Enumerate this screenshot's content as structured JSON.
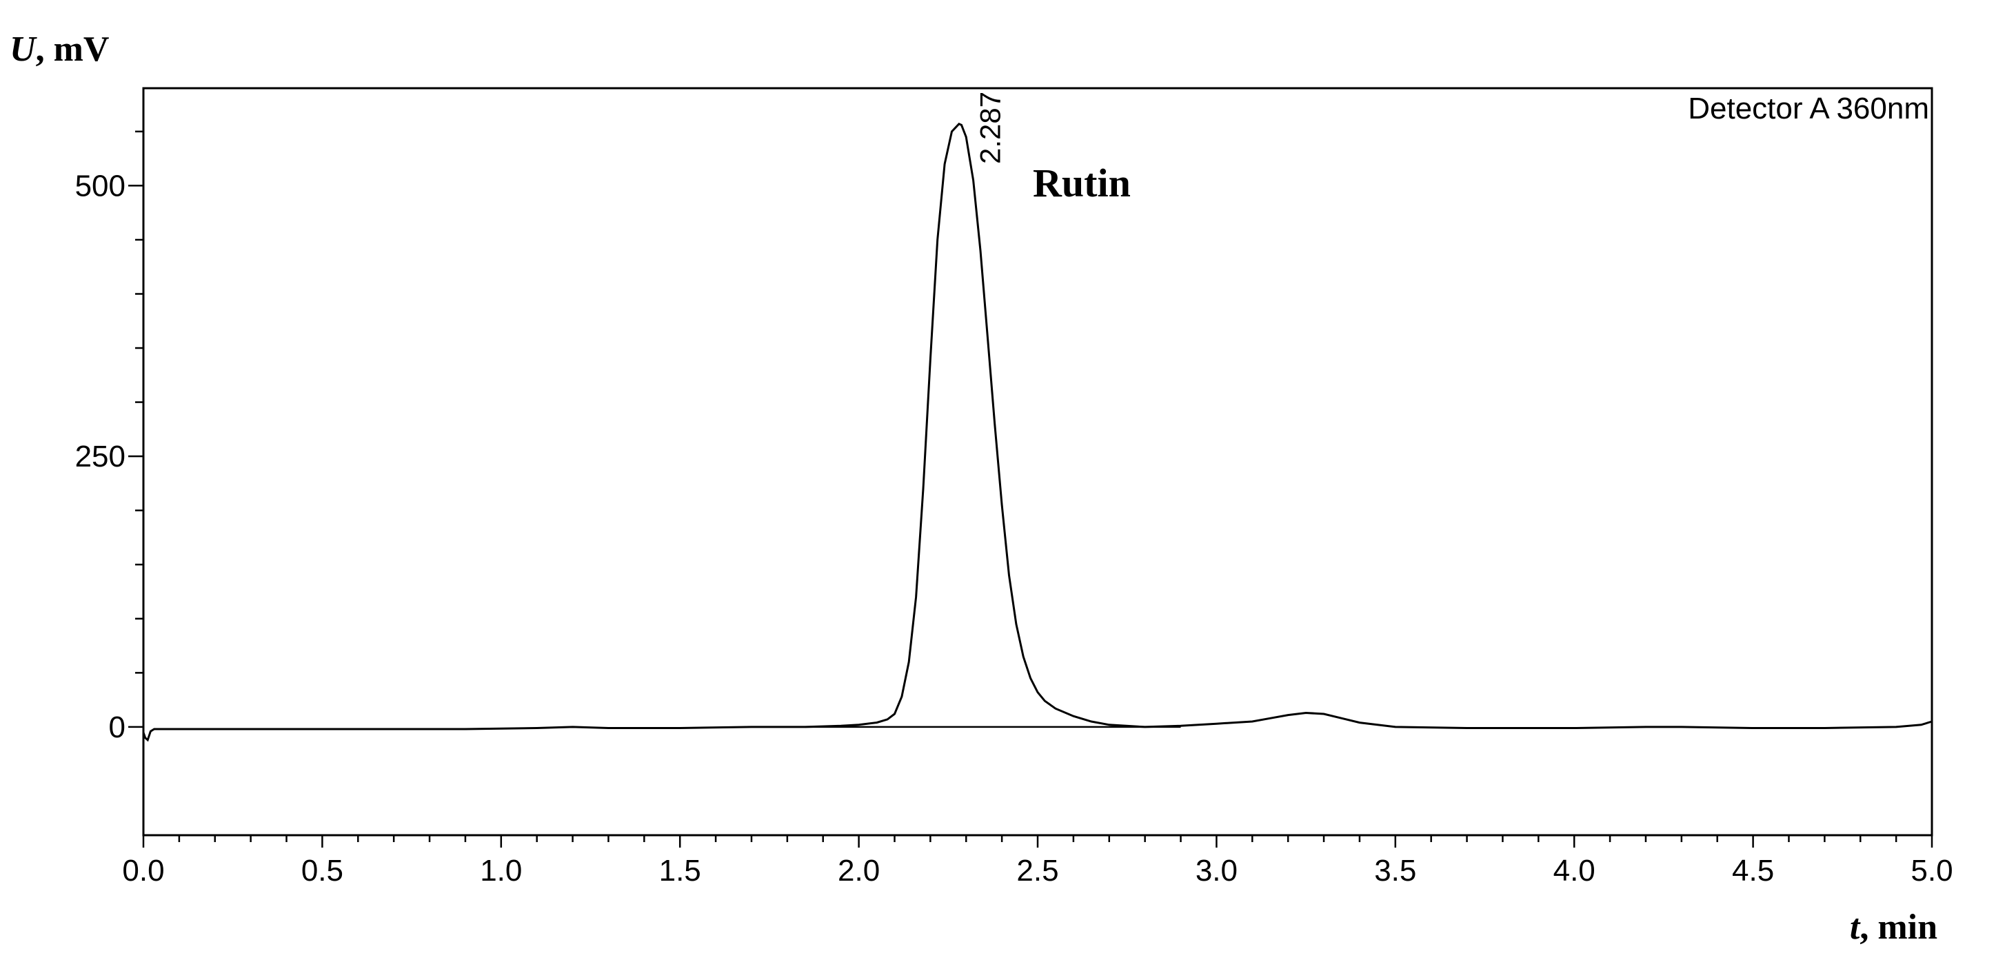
{
  "chart_data": {
    "type": "line",
    "ylabel_symbol": "U",
    "ylabel_unit": ", mV",
    "xlabel_symbol": "t",
    "xlabel_unit": ", min",
    "xlim": [
      0.0,
      5.0
    ],
    "ylim": [
      -100,
      590
    ],
    "x_ticks": [
      {
        "value": 0.0,
        "label": "0.0"
      },
      {
        "value": 0.5,
        "label": "0.5"
      },
      {
        "value": 1.0,
        "label": "1.0"
      },
      {
        "value": 1.5,
        "label": "1.5"
      },
      {
        "value": 2.0,
        "label": "2.0"
      },
      {
        "value": 2.5,
        "label": "2.5"
      },
      {
        "value": 3.0,
        "label": "3.0"
      },
      {
        "value": 3.5,
        "label": "3.5"
      },
      {
        "value": 4.0,
        "label": "4.0"
      },
      {
        "value": 4.5,
        "label": "4.5"
      },
      {
        "value": 5.0,
        "label": "5.0"
      }
    ],
    "x_minor_step": 0.1,
    "y_ticks": [
      {
        "value": 0,
        "label": "0"
      },
      {
        "value": 250,
        "label": "250"
      },
      {
        "value": 500,
        "label": "500"
      }
    ],
    "y_minor_step": 50,
    "grid": false,
    "detector_label": "Detector A 360nm",
    "peak_retention_label": "2.287",
    "peak_retention_time": 2.287,
    "compound_label": "Rutin",
    "series": [
      {
        "x": [
          0.0,
          0.005,
          0.012,
          0.02,
          0.03,
          0.05,
          0.1,
          0.3,
          0.6,
          0.9,
          1.1,
          1.2,
          1.3,
          1.5,
          1.7,
          1.85,
          1.95,
          2.0,
          2.05,
          2.08,
          2.1,
          2.12,
          2.14,
          2.16,
          2.18,
          2.2,
          2.22,
          2.24,
          2.26,
          2.28,
          2.287,
          2.3,
          2.32,
          2.34,
          2.36,
          2.38,
          2.4,
          2.42,
          2.44,
          2.46,
          2.48,
          2.5,
          2.52,
          2.55,
          2.6,
          2.65,
          2.7,
          2.8,
          2.9,
          3.0,
          3.1,
          3.15,
          3.2,
          3.25,
          3.3,
          3.35,
          3.4,
          3.5,
          3.7,
          4.0,
          4.2,
          4.3,
          4.5,
          4.7,
          4.9,
          4.97,
          5.0
        ],
        "y": [
          -5,
          -10,
          -12,
          -4,
          -2,
          -2,
          -2,
          -2,
          -2,
          -2,
          -1,
          0,
          -1,
          -1,
          0,
          0,
          1,
          2,
          4,
          7,
          12,
          28,
          60,
          120,
          220,
          340,
          450,
          520,
          550,
          557,
          556,
          545,
          505,
          440,
          360,
          280,
          205,
          140,
          95,
          65,
          45,
          32,
          24,
          17,
          10,
          5,
          2,
          0,
          1,
          3,
          5,
          8,
          11,
          13,
          12,
          8,
          4,
          0,
          -1,
          -1,
          0,
          0,
          -1,
          -1,
          0,
          2,
          5
        ]
      }
    ]
  }
}
